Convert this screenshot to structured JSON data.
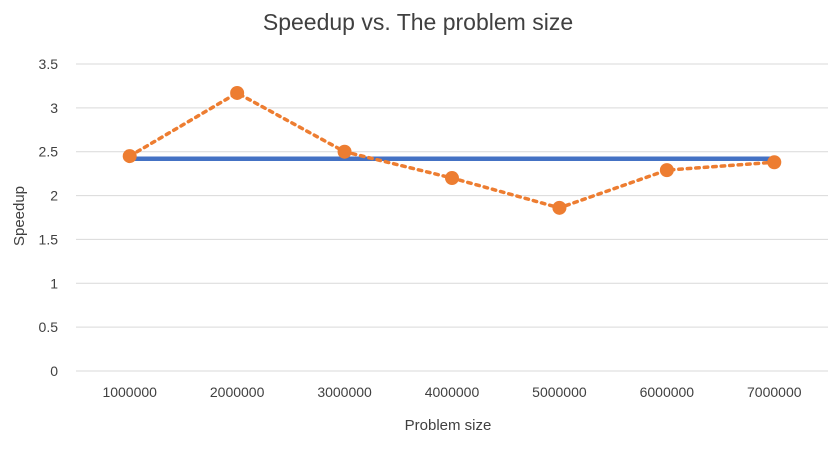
{
  "chart_data": {
    "type": "line",
    "title": "Speedup vs. The problem size",
    "xlabel": "Problem size",
    "ylabel": "Speedup",
    "categories": [
      "1000000",
      "2000000",
      "3000000",
      "4000000",
      "5000000",
      "6000000",
      "7000000"
    ],
    "yticks": [
      "0",
      "0.5",
      "1",
      "1.5",
      "2",
      "2.5",
      "3",
      "3.5"
    ],
    "ylim": [
      0,
      3.5
    ],
    "grid": true,
    "legend": "none",
    "series": [
      {
        "values": [
          2.45,
          3.17,
          2.5,
          2.2,
          1.86,
          2.29,
          2.38
        ],
        "color": "#ED7D31",
        "style": "dotted-with-markers"
      },
      {
        "values": [
          2.42,
          2.42,
          2.42,
          2.42,
          2.42,
          2.42,
          2.42
        ],
        "color": "#4472C4",
        "style": "solid"
      }
    ]
  }
}
